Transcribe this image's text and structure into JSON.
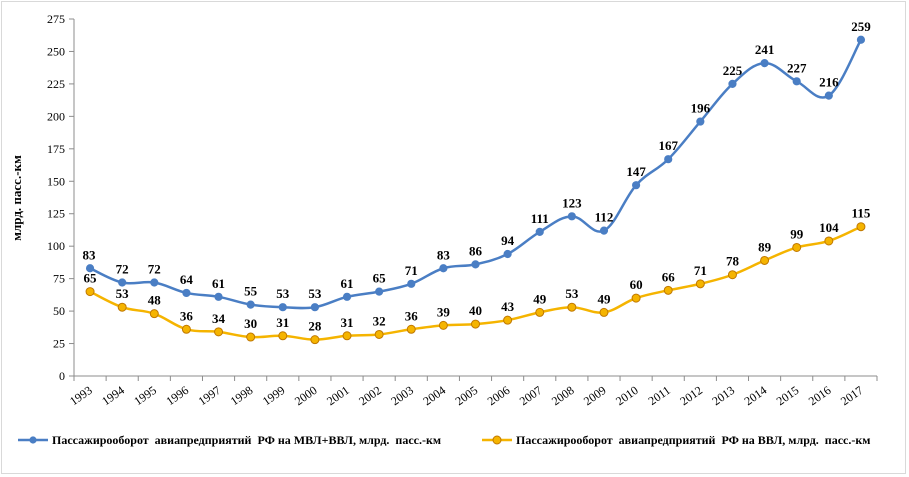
{
  "chart_data": {
    "type": "line",
    "title": "",
    "xlabel": "",
    "ylabel": "млрд. пасс.-км",
    "ylim": [
      0,
      275
    ],
    "yticks": [
      "0",
      "25",
      "50",
      "75",
      "100",
      "125",
      "150",
      "175",
      "200",
      "225",
      "250",
      "275"
    ],
    "grid": false,
    "legend_position": "bottom",
    "x": [
      "1993",
      "1994",
      "1995",
      "1996",
      "1997",
      "1998",
      "1999",
      "2000",
      "2001",
      "2002",
      "2003",
      "2004",
      "2005",
      "2006",
      "2007",
      "2008",
      "2009",
      "2010",
      "2011",
      "2012",
      "2013",
      "2014",
      "2015",
      "2016",
      "2017"
    ],
    "series": [
      {
        "name": "Пассажирооборот  авиапредприятий  РФ на МВЛ+ВВЛ, млрд.  пасс.-км",
        "color": "#4a7ec4",
        "values": [
          83,
          72,
          72,
          64,
          61,
          55,
          53,
          53,
          61,
          65,
          71,
          83,
          86,
          94,
          111,
          123,
          112,
          147,
          167,
          196,
          225,
          241,
          227,
          216,
          259
        ]
      },
      {
        "name": "Пассажирооборот  авиапредприятий  РФ на ВВЛ, млрд.  пасс.-км",
        "color": "#f5b400",
        "values": [
          65,
          53,
          48,
          36,
          34,
          30,
          31,
          28,
          31,
          32,
          36,
          39,
          40,
          43,
          49,
          53,
          49,
          60,
          66,
          71,
          78,
          89,
          99,
          104,
          115
        ]
      }
    ]
  }
}
